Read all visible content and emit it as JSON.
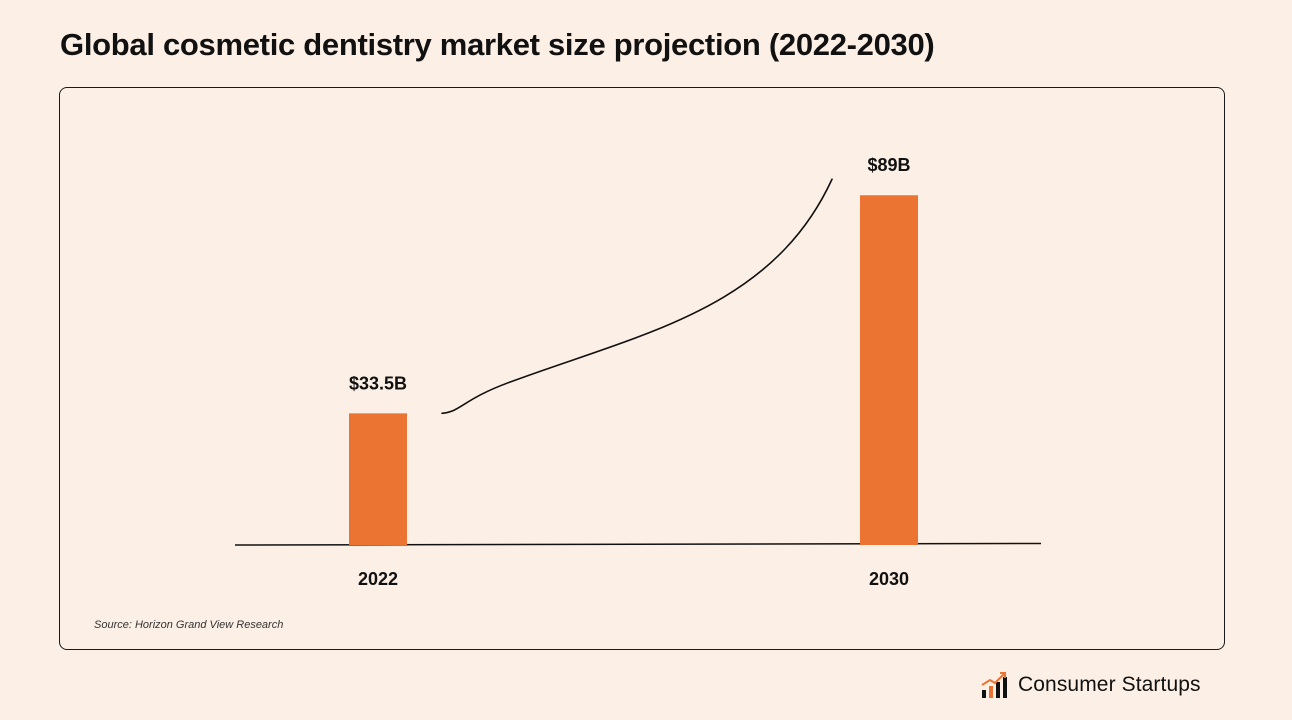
{
  "title": "Global cosmetic dentistry market size projection (2022-2030)",
  "source": "Source: Horizon Grand View Research",
  "brand": {
    "name": "Consumer Startups",
    "icon": "bar-chart-growth-icon"
  },
  "colors": {
    "background": "#fcefe6",
    "bar": "#ec7432",
    "ink": "#111111"
  },
  "chart_data": {
    "type": "bar",
    "categories": [
      "2022",
      "2030"
    ],
    "values": [
      33.5,
      89
    ],
    "data_labels": [
      "$33.5B",
      "$89B"
    ],
    "title": "Global cosmetic dentistry market size projection (2022-2030)",
    "xlabel": "",
    "ylabel": "",
    "ylim": [
      0,
      100
    ],
    "grid": false,
    "legend": "none",
    "annotations": [
      "hand-drawn growth curve from 2022 bar toward 2030 bar"
    ]
  }
}
